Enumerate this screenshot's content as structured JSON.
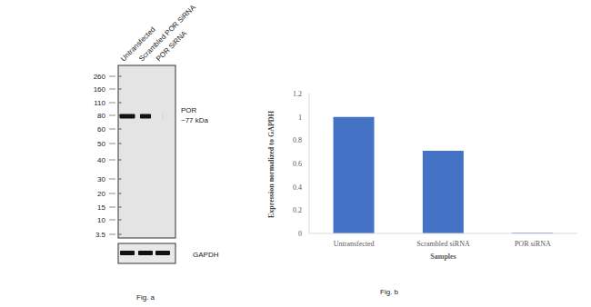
{
  "blot": {
    "lanes": [
      "Untransfected",
      "Scrambled POR SiRNA",
      "POR SiRNA"
    ],
    "ladder": [
      260,
      160,
      110,
      80,
      60,
      50,
      40,
      30,
      20,
      15,
      10,
      3.5
    ],
    "target": {
      "name": "POR",
      "size": "~77 kDa"
    },
    "loading_control": "GAPDH",
    "caption": "Fig. a"
  },
  "chart_data": {
    "type": "bar",
    "categories": [
      "Untransfected",
      "Scrambled siRNA",
      "POR siRNA"
    ],
    "values": [
      1,
      0.71,
      0.005
    ],
    "color": "#4472c4",
    "ylim": [
      0,
      1.2
    ],
    "yticks": [
      0,
      0.2,
      0.4,
      0.6,
      0.8,
      1,
      1.2
    ],
    "grid": false,
    "y_label": "Expression normalized to GAPDH",
    "x_label": "Samples",
    "caption": "Fig. b"
  }
}
